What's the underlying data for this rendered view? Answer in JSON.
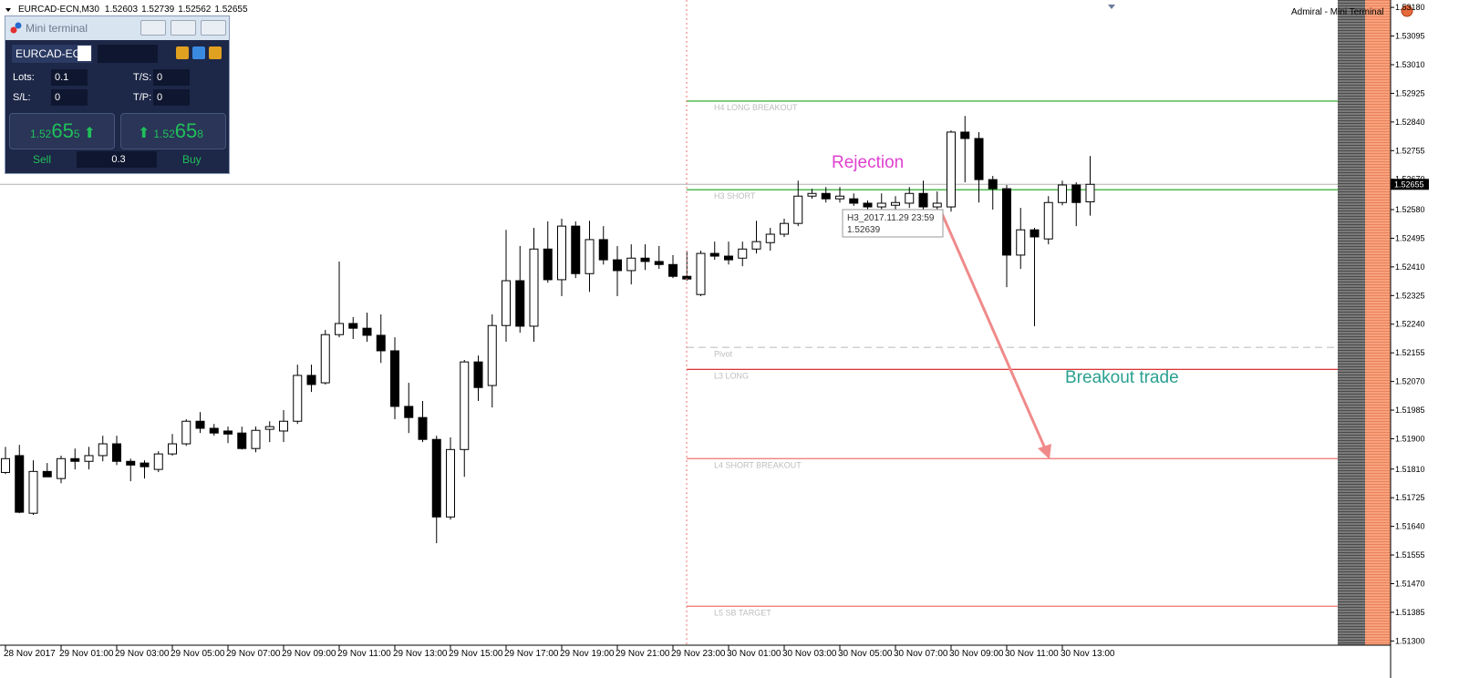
{
  "chart_data": {
    "type": "candlestick",
    "symbol": "EURCAD-ECN,M30",
    "app_label": "Admiral - Mini Terminal",
    "categories": [
      "28 Nov 2017",
      null,
      null,
      null,
      "29 Nov 01:00",
      null,
      null,
      null,
      "29 Nov 03:00",
      null,
      null,
      null,
      "29 Nov 05:00",
      null,
      null,
      null,
      "29 Nov 07:00",
      null,
      null,
      null,
      "29 Nov 09:00",
      null,
      null,
      null,
      "29 Nov 11:00",
      null,
      null,
      null,
      "29 Nov 13:00",
      null,
      null,
      null,
      "29 Nov 15:00",
      null,
      null,
      null,
      "29 Nov 17:00",
      null,
      null,
      null,
      "29 Nov 19:00",
      null,
      null,
      null,
      "29 Nov 21:00",
      null,
      null,
      null,
      "29 Nov 23:00",
      null,
      null,
      null,
      "30 Nov 01:00",
      null,
      null,
      null,
      "30 Nov 03:00",
      null,
      null,
      null,
      "30 Nov 05:00",
      null,
      null,
      null,
      "30 Nov 07:00",
      null,
      null,
      null,
      "30 Nov 09:00",
      null,
      null,
      null,
      "30 Nov 11:00",
      null,
      null,
      null,
      "30 Nov 13:00",
      null,
      null
    ],
    "open": [
      1.518,
      1.5185,
      1.51679,
      1.51803,
      1.51782,
      1.51841,
      1.51833,
      1.5185,
      1.51885,
      1.51833,
      1.51828,
      1.51809,
      1.51855,
      1.51885,
      1.51952,
      1.51931,
      1.51923,
      1.51917,
      1.51871,
      1.51928,
      1.51923,
      1.51952,
      1.52088,
      1.52066,
      1.52209,
      1.52242,
      1.52228,
      1.52207,
      1.52161,
      1.51996,
      1.51963,
      1.51898,
      1.51668,
      1.51868,
      1.52128,
      1.52058,
      1.52236,
      1.52369,
      1.52234,
      1.52463,
      1.52372,
      1.52531,
      1.5239,
      1.52491,
      1.52431,
      1.52399,
      1.52436,
      1.52426,
      1.52417,
      1.52382,
      1.52328,
      1.5245,
      1.52442,
      1.52436,
      1.52463,
      1.52482,
      1.52507,
      1.52539,
      1.5262,
      1.52628,
      1.52612,
      1.52612,
      1.52599,
      1.52588,
      1.52593,
      1.52599,
      1.52628,
      1.52588,
      1.52588,
      1.5281,
      1.52791,
      1.52669,
      1.52642,
      1.52445,
      1.5252,
      1.52493,
      1.52601,
      1.52653,
      1.52603
    ],
    "high": [
      1.51876,
      1.51882,
      1.51836,
      1.51828,
      1.5185,
      1.51871,
      1.51876,
      1.51909,
      1.51909,
      1.51841,
      1.51836,
      1.51863,
      1.51914,
      1.51958,
      1.51979,
      1.51944,
      1.51936,
      1.51936,
      1.51936,
      1.51952,
      1.51985,
      1.5212,
      1.5212,
      1.52223,
      1.52426,
      1.52261,
      1.52274,
      1.52269,
      1.52201,
      1.52066,
      1.52012,
      1.51909,
      1.51904,
      1.52134,
      1.52147,
      1.52269,
      1.5252,
      1.52472,
      1.52526,
      1.52545,
      1.52553,
      1.52545,
      1.52547,
      1.52531,
      1.52472,
      1.52477,
      1.52477,
      1.52472,
      1.52445,
      1.52458,
      1.52458,
      1.52485,
      1.52485,
      1.52485,
      1.52547,
      1.52526,
      1.52553,
      1.52666,
      1.52642,
      1.52647,
      1.52647,
      1.52628,
      1.52607,
      1.52628,
      1.5262,
      1.52647,
      1.52666,
      1.52634,
      1.52815,
      1.52858,
      1.5281,
      1.5268,
      1.52653,
      1.52585,
      1.52526,
      1.5262,
      1.52666,
      1.52661,
      1.52739
    ],
    "low": [
      1.51795,
      1.51679,
      1.51674,
      1.51787,
      1.51768,
      1.51809,
      1.51809,
      1.51833,
      1.51822,
      1.51774,
      1.51782,
      1.51801,
      1.5185,
      1.51879,
      1.51917,
      1.51909,
      1.51887,
      1.51868,
      1.5186,
      1.5189,
      1.5189,
      1.51944,
      1.52039,
      1.52061,
      1.52201,
      1.52196,
      1.52188,
      1.52125,
      1.51958,
      1.51917,
      1.5189,
      1.5159,
      1.5166,
      1.51787,
      1.52012,
      1.51993,
      1.52188,
      1.52215,
      1.52188,
      1.52363,
      1.52323,
      1.52377,
      1.52336,
      1.52417,
      1.52323,
      1.52358,
      1.52401,
      1.52404,
      1.52377,
      1.52369,
      1.52323,
      1.52431,
      1.52417,
      1.52412,
      1.5245,
      1.52458,
      1.52499,
      1.52531,
      1.52612,
      1.52601,
      1.52601,
      1.52591,
      1.5258,
      1.5258,
      1.5258,
      1.52585,
      1.5258,
      1.5258,
      1.52574,
      1.52661,
      1.52601,
      1.5258,
      1.5235,
      1.52404,
      1.52234,
      1.52477,
      1.52593,
      1.52531,
      1.52562
    ],
    "close": [
      1.51841,
      1.51682,
      1.51803,
      1.51787,
      1.51841,
      1.51833,
      1.5185,
      1.51885,
      1.51833,
      1.51822,
      1.51817,
      1.51855,
      1.51885,
      1.51952,
      1.51931,
      1.51917,
      1.51914,
      1.51871,
      1.51925,
      1.51936,
      1.51952,
      1.52088,
      1.52061,
      1.52209,
      1.52242,
      1.52228,
      1.52207,
      1.52161,
      1.51996,
      1.51963,
      1.51898,
      1.51668,
      1.51868,
      1.52128,
      1.52052,
      1.52236,
      1.52369,
      1.52234,
      1.52463,
      1.52372,
      1.52531,
      1.5239,
      1.52491,
      1.52431,
      1.52399,
      1.52436,
      1.52426,
      1.52417,
      1.52382,
      1.52374,
      1.5245,
      1.52442,
      1.52431,
      1.52463,
      1.52485,
      1.52507,
      1.52539,
      1.5262,
      1.52628,
      1.52612,
      1.5262,
      1.52599,
      1.52588,
      1.52599,
      1.52601,
      1.52628,
      1.52588,
      1.52599,
      1.5281,
      1.52791,
      1.52669,
      1.52642,
      1.52445,
      1.5252,
      1.52499,
      1.52601,
      1.52653,
      1.52601,
      1.52655
    ],
    "up_color": "#ffffff",
    "down_color": "#000000",
    "ylim": [
      1.51282,
      1.53202
    ],
    "yticks": [
      {
        "value": 1.5318,
        "label": "1.53180"
      },
      {
        "value": 1.53095,
        "label": "1.53095"
      },
      {
        "value": 1.5301,
        "label": "1.53010"
      },
      {
        "value": 1.52925,
        "label": "1.52925"
      },
      {
        "value": 1.5284,
        "label": "1.52840"
      },
      {
        "value": 1.52755,
        "label": "1.52755"
      },
      {
        "value": 1.5267,
        "label": "1.52670"
      },
      {
        "value": 1.5258,
        "label": "1.52580"
      },
      {
        "value": 1.52495,
        "label": "1.52495"
      },
      {
        "value": 1.5241,
        "label": "1.52410"
      },
      {
        "value": 1.52325,
        "label": "1.52325"
      },
      {
        "value": 1.5224,
        "label": "1.52240"
      },
      {
        "value": 1.52155,
        "label": "1.52155"
      },
      {
        "value": 1.5207,
        "label": "1.52070"
      },
      {
        "value": 1.51985,
        "label": "1.51985"
      },
      {
        "value": 1.519,
        "label": "1.51900"
      },
      {
        "value": 1.5181,
        "label": "1.51810"
      },
      {
        "value": 1.51725,
        "label": "1.51725"
      },
      {
        "value": 1.5164,
        "label": "1.51640"
      },
      {
        "value": 1.51555,
        "label": "1.51555"
      },
      {
        "value": 1.5147,
        "label": "1.51470"
      },
      {
        "value": 1.51385,
        "label": "1.51385"
      },
      {
        "value": 1.513,
        "label": "1.51300"
      }
    ],
    "grid": false,
    "levels": [
      {
        "label": "H4 LONG BREAKOUT",
        "value": 1.52902,
        "color": "#1aa31a",
        "style": "solid"
      },
      {
        "label": "H3 SHORT",
        "value": 1.52639,
        "color": "#1aa31a",
        "style": "solid"
      },
      {
        "label": "Pivot",
        "value": 1.52171,
        "color": "#d0d0d0",
        "style": "dashed"
      },
      {
        "label": "L3 LONG",
        "value": 1.52106,
        "color": "#d81818",
        "style": "solid"
      },
      {
        "label": "L4 SHORT BREAKOUT",
        "value": 1.51841,
        "color": "#f07070",
        "style": "solid"
      },
      {
        "label": "L5 SB TARGET",
        "value": 1.51403,
        "color": "#f07070",
        "style": "solid"
      }
    ],
    "tooltip_label": "H3_2017.11.29 23:59",
    "annotations": [
      "Rejection",
      "Breakout trade"
    ]
  },
  "mini_terminal": {
    "title": "Mini terminal",
    "symbol": "EURCAD-EC",
    "lots_label": "Lots:",
    "lots": 0.1,
    "ts_label": "T/S:",
    "ts": 0,
    "sl_label": "S/L:",
    "sl": 0,
    "tp_label": "T/P:",
    "tp": 0,
    "sell_price": {
      "prefix": "1.52",
      "big": "65",
      "suffix": "5"
    },
    "buy_price": {
      "prefix": "1.52",
      "big": "65",
      "suffix": "8"
    },
    "sell": "Sell",
    "volume": 0.3,
    "buy": "Buy"
  }
}
